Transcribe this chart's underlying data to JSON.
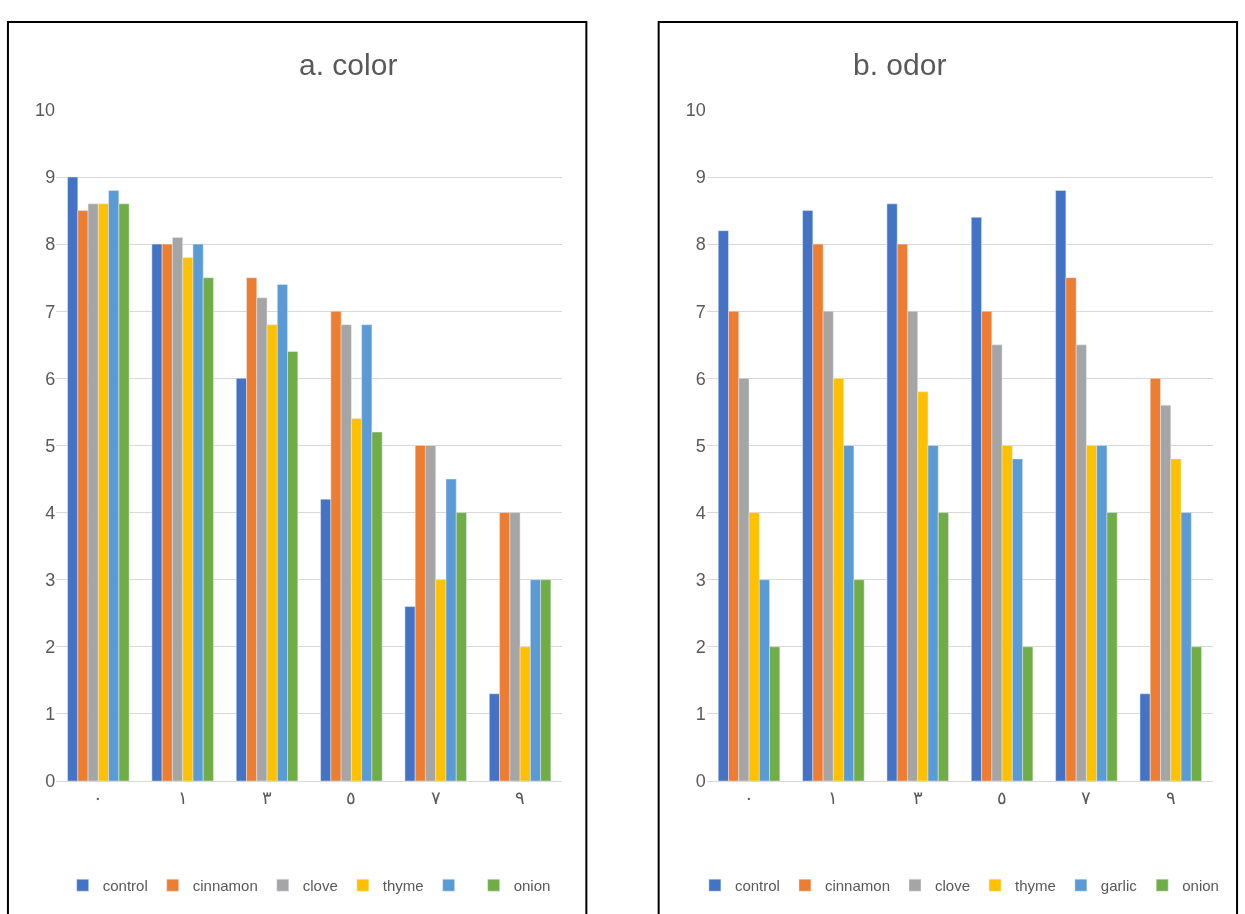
{
  "chart_data": [
    {
      "type": "bar",
      "title": "a. color",
      "categories": [
        "٠",
        "١",
        "٣",
        "٥",
        "٧",
        "٩"
      ],
      "ylim": [
        0,
        10
      ],
      "yticks": [
        0,
        1,
        2,
        3,
        4,
        5,
        6,
        7,
        8,
        9,
        10
      ],
      "grid": "y",
      "legend": "bottom",
      "series": [
        {
          "name": "control",
          "color": "#4472c4",
          "values": [
            9,
            8,
            6,
            4.2,
            2.6,
            1.3
          ]
        },
        {
          "name": "cinnamon",
          "color": "#ed7d31",
          "values": [
            8.5,
            8,
            7.5,
            7,
            5,
            4
          ]
        },
        {
          "name": "clove",
          "color": "#a5a5a5",
          "values": [
            8.6,
            8.1,
            7.2,
            6.8,
            5,
            4
          ]
        },
        {
          "name": "thyme",
          "color": "#ffc000",
          "values": [
            8.6,
            7.8,
            6.8,
            5.4,
            3,
            2
          ]
        },
        {
          "color": "#5b9bd5",
          "values": [
            8.8,
            8,
            7.4,
            6.8,
            4.5,
            3
          ]
        },
        {
          "name": "onion",
          "color": "#70ad47",
          "values": [
            8.6,
            7.5,
            6.4,
            5.2,
            4,
            3
          ]
        }
      ]
    },
    {
      "type": "bar",
      "title": "b. odor",
      "categories": [
        "٠",
        "١",
        "٣",
        "٥",
        "٧",
        "٩"
      ],
      "ylim": [
        0,
        10
      ],
      "yticks": [
        0,
        1,
        2,
        3,
        4,
        5,
        6,
        7,
        8,
        9,
        10
      ],
      "grid": "y",
      "legend": "bottom",
      "series": [
        {
          "name": "control",
          "color": "#4472c4",
          "values": [
            8.2,
            8.5,
            8.6,
            8.4,
            8.8,
            1.3
          ]
        },
        {
          "name": "cinnamon",
          "color": "#ed7d31",
          "values": [
            7,
            8,
            8,
            7,
            7.5,
            6
          ]
        },
        {
          "name": "clove",
          "color": "#a5a5a5",
          "values": [
            6,
            7,
            7,
            6.5,
            6.5,
            5.6
          ]
        },
        {
          "name": "thyme",
          "color": "#ffc000",
          "values": [
            4,
            6,
            5.8,
            5,
            5,
            4.8
          ]
        },
        {
          "name": "garlic",
          "color": "#5b9bd5",
          "values": [
            3,
            5,
            5,
            4.8,
            5,
            4
          ]
        },
        {
          "name": "onion",
          "color": "#70ad47",
          "values": [
            2,
            3,
            4,
            2,
            4,
            2
          ]
        }
      ]
    }
  ]
}
